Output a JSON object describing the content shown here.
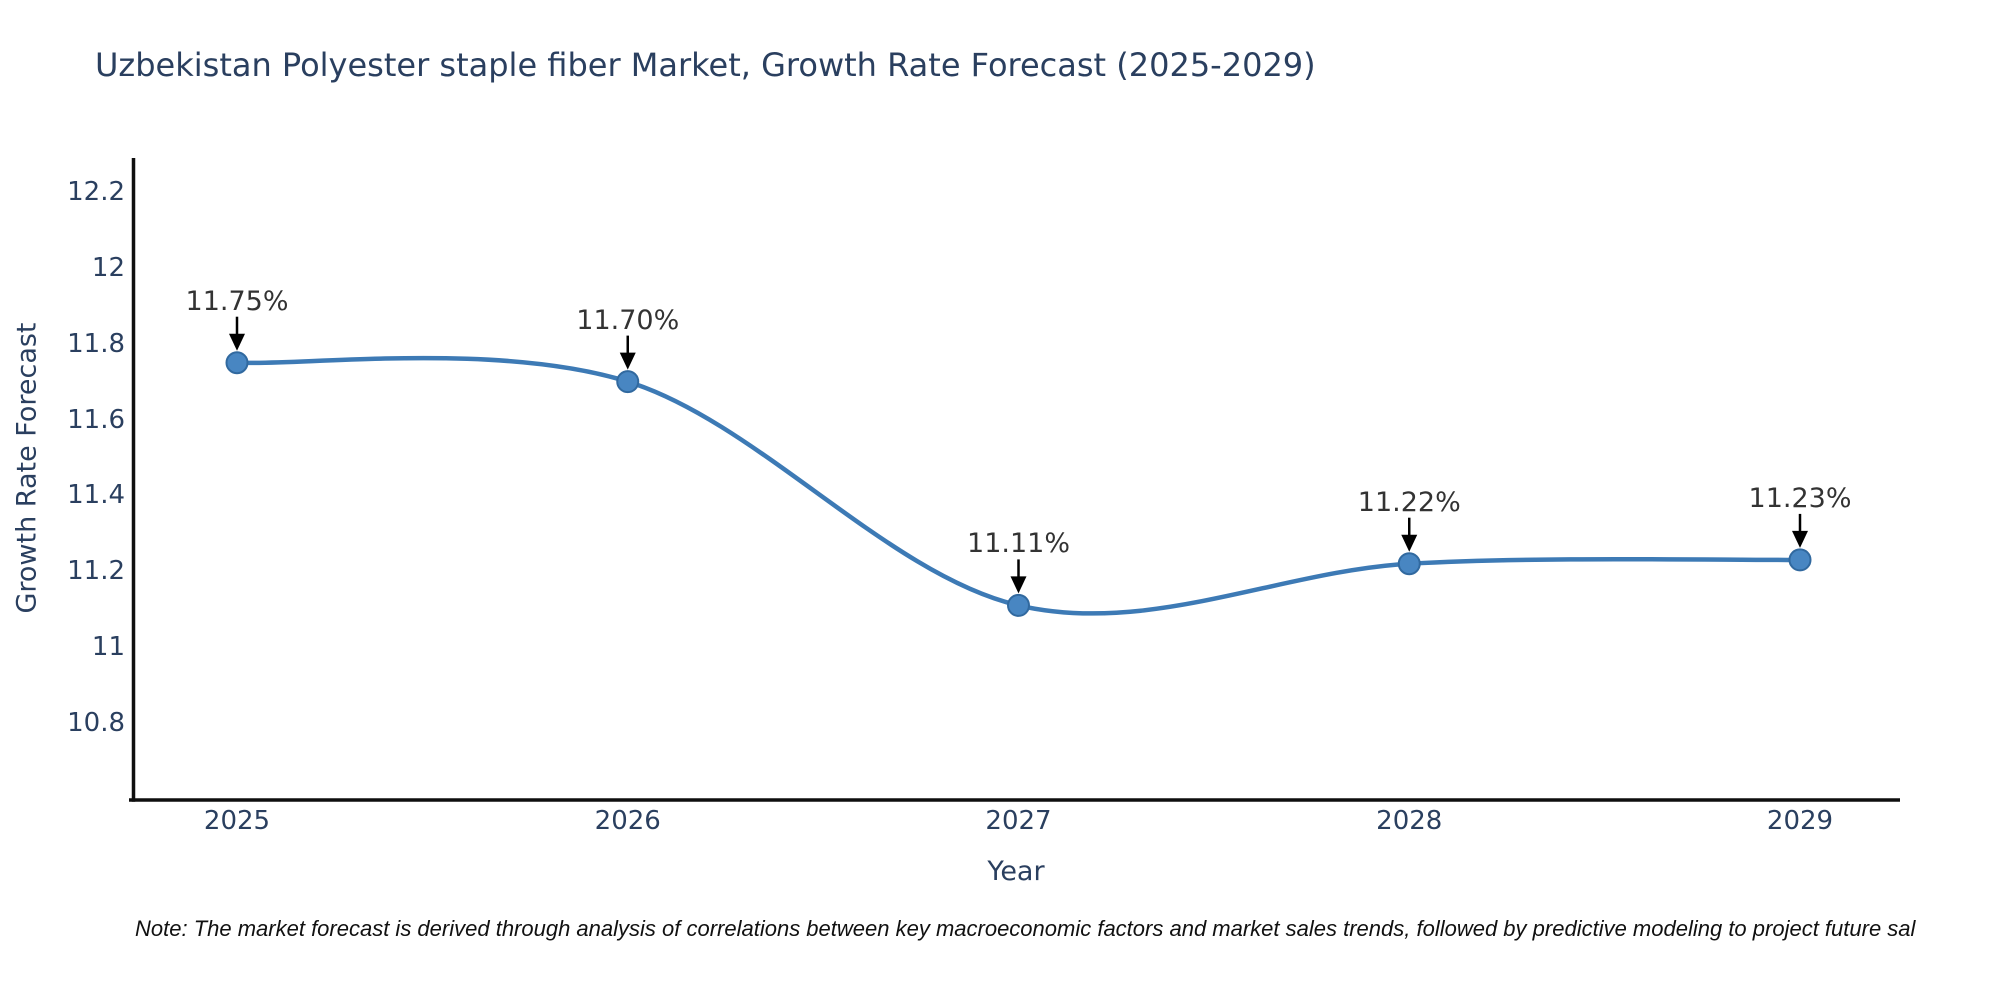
{
  "note": {
    "text": "Note: The market forecast is derived through analysis of correlations between key macroeconomic factors and market sales trends, followed by predictive modeling to project future sal"
  },
  "chart_data": {
    "type": "line",
    "title": "Uzbekistan Polyester staple fiber Market, Growth Rate Forecast (2025-2029)",
    "xlabel": "Year",
    "ylabel": "Growth Rate Forecast",
    "x": [
      2025,
      2026,
      2027,
      2028,
      2029
    ],
    "x_tick_labels": [
      "2025",
      "2026",
      "2027",
      "2028",
      "2029"
    ],
    "series": [
      {
        "name": "Growth Rate Forecast",
        "values": [
          11.75,
          11.7,
          11.11,
          11.22,
          11.23
        ],
        "point_labels": [
          "11.75%",
          "11.70%",
          "11.11%",
          "11.22%",
          "11.23%"
        ]
      }
    ],
    "y_ticks": [
      10.8,
      11,
      11.2,
      11.4,
      11.6,
      11.8,
      12,
      12.2
    ],
    "y_tick_labels": [
      "10.8",
      "11",
      "11.2",
      "11.4",
      "11.6",
      "11.8",
      "12",
      "12.2"
    ],
    "ylim": [
      10.6,
      12.28
    ],
    "grid": false,
    "legend_position": "none",
    "annotations_have_arrows": true,
    "colors": {
      "line": "#3d7ab5",
      "marker_fill": "#4886c2",
      "marker_edge": "#31699f",
      "annotation_text": "#333333",
      "arrow": "#000000",
      "axis": "#0f0f0f",
      "chart_text": "#2a3f5f"
    }
  }
}
